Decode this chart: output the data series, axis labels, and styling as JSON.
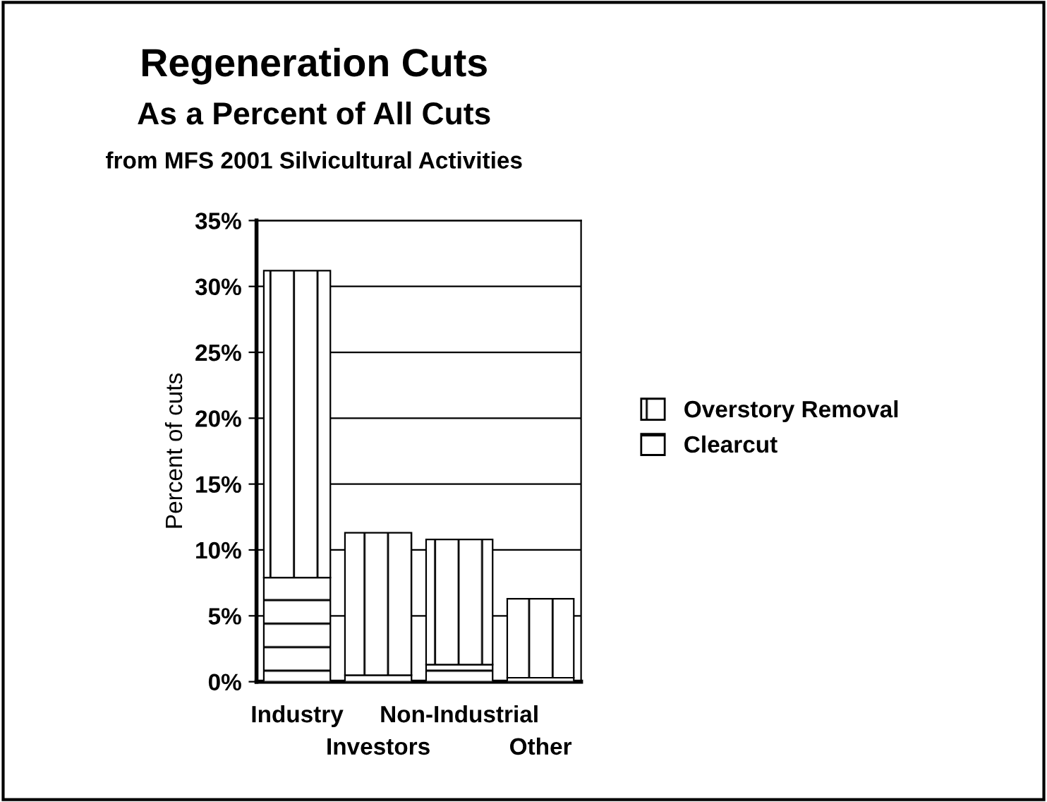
{
  "chart_data": {
    "type": "bar",
    "title": "Regeneration Cuts",
    "subtitle": "As a Percent of All Cuts",
    "annotations": [
      "from MFS 2001 Silvicultural Activities"
    ],
    "ylabel": "Percent of cuts",
    "categories": [
      "Industry",
      "Investors",
      "Non-Industrial",
      "Other"
    ],
    "stacked": true,
    "series": [
      {
        "name": "Clearcut",
        "color": "#000000",
        "values": [
          7.9,
          0.5,
          1.3,
          0.3
        ]
      },
      {
        "name": "Overstory Removal",
        "color": "#000000",
        "values": [
          23.3,
          10.8,
          9.5,
          6.0
        ]
      }
    ],
    "ylim": [
      0,
      35
    ],
    "yticks": [
      {
        "value": 0,
        "label": "0%"
      },
      {
        "value": 5,
        "label": "5%"
      },
      {
        "value": 10,
        "label": "10%"
      },
      {
        "value": 15,
        "label": "15%"
      },
      {
        "value": 20,
        "label": "20%"
      },
      {
        "value": 25,
        "label": "25%"
      },
      {
        "value": 30,
        "label": "30%"
      },
      {
        "value": 35,
        "label": "35%"
      }
    ],
    "grid": "y",
    "legend": "right"
  }
}
